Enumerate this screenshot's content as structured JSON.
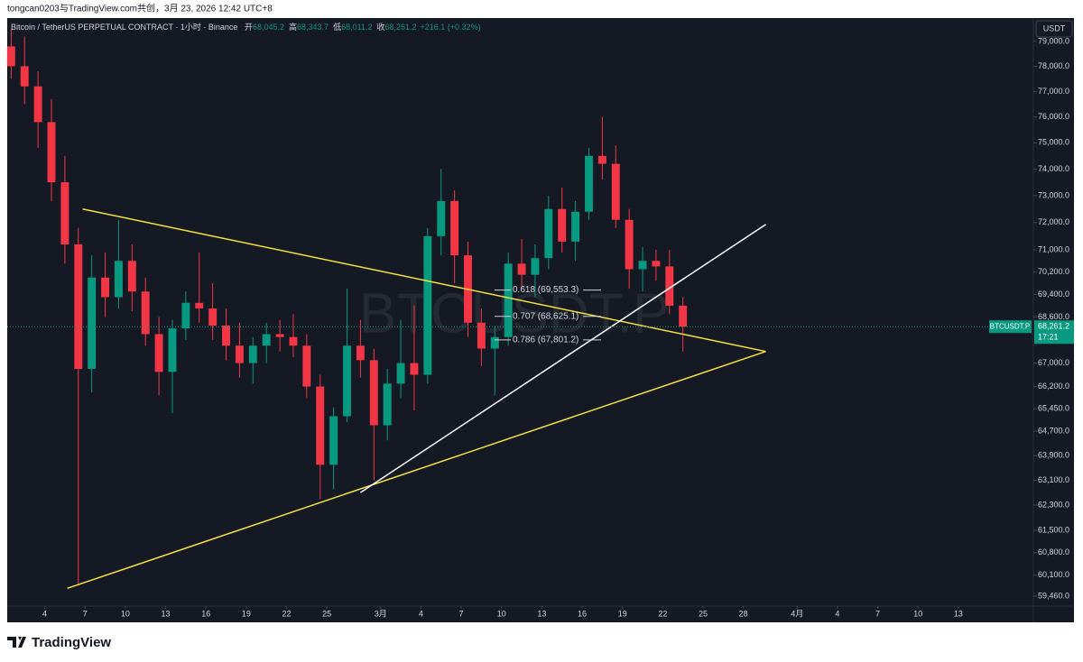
{
  "header": {
    "credit": "tongcan0203与TradingView.com共创，3月 23, 2026 12:42 UTC+8",
    "brand": "TradingView"
  },
  "chart_data": {
    "type": "candlestick",
    "title": "Bitcoin / TetherUS PERPETUAL CONTRACT · 1小时 · Binance",
    "ohlc_legend": [
      {
        "key": "开",
        "value": "68,045.2"
      },
      {
        "key": "高",
        "value": "68,343.7"
      },
      {
        "key": "低",
        "value": "68,011.2"
      },
      {
        "key": "收",
        "value": "68,261.2"
      }
    ],
    "change": "+216.1 (+0.32%)",
    "watermark": "BTCUSDT.P",
    "symbol": "BTCUSDT.P",
    "currency": "USDT",
    "countdown": "17:21",
    "last_price": {
      "value": 68261.2,
      "label": "68,261.2"
    },
    "up_color": "#089981",
    "down_color": "#f23645",
    "log_scale": true,
    "x": [
      "2026-02-01",
      "2026-02-02",
      "2026-02-03",
      "2026-02-04",
      "2026-02-05",
      "2026-02-06",
      "2026-02-07",
      "2026-02-08",
      "2026-02-09",
      "2026-02-10",
      "2026-02-11",
      "2026-02-12",
      "2026-02-13",
      "2026-02-14",
      "2026-02-15",
      "2026-02-16",
      "2026-02-17",
      "2026-02-18",
      "2026-02-19",
      "2026-02-20",
      "2026-02-21",
      "2026-02-22",
      "2026-02-23",
      "2026-02-24",
      "2026-02-25",
      "2026-02-26",
      "2026-02-27",
      "2026-02-28",
      "2026-03-01",
      "2026-03-02",
      "2026-03-03",
      "2026-03-04",
      "2026-03-05",
      "2026-03-06",
      "2026-03-07",
      "2026-03-08",
      "2026-03-09",
      "2026-03-10",
      "2026-03-11",
      "2026-03-12",
      "2026-03-13",
      "2026-03-14",
      "2026-03-15",
      "2026-03-16",
      "2026-03-17",
      "2026-03-18",
      "2026-03-19",
      "2026-03-20",
      "2026-03-21",
      "2026-03-22",
      "2026-03-23"
    ],
    "open": [
      78800,
      78000,
      77200,
      75800,
      73500,
      71200,
      66800,
      70000,
      69300,
      70600,
      69500,
      68000,
      66700,
      68200,
      69100,
      68900,
      68300,
      67600,
      67000,
      67600,
      68000,
      67900,
      67600,
      66200,
      63600,
      65200,
      67600,
      67100,
      64900,
      66300,
      67000,
      66600,
      71500,
      72800,
      70800,
      68400,
      67500,
      67900,
      70500,
      70100,
      70700,
      72500,
      71300,
      72400,
      74500,
      74200,
      72100,
      70300,
      70600,
      70400,
      69000
    ],
    "high": [
      79500,
      79200,
      77800,
      76700,
      74500,
      71800,
      70800,
      70900,
      72100,
      71200,
      70000,
      68600,
      68500,
      69500,
      70900,
      69800,
      68900,
      68400,
      67900,
      68400,
      68500,
      68700,
      68000,
      66600,
      65500,
      69600,
      68500,
      67500,
      66800,
      68500,
      69000,
      71800,
      74000,
      73200,
      71300,
      68900,
      68300,
      70900,
      71400,
      71200,
      73000,
      73300,
      72800,
      74800,
      76000,
      74900,
      72500,
      71100,
      71000,
      71000,
      69300
    ],
    "low": [
      77500,
      76500,
      74800,
      72800,
      70500,
      59800,
      66000,
      68600,
      68900,
      68800,
      67600,
      65900,
      65300,
      67800,
      68400,
      67800,
      67100,
      66500,
      66300,
      67000,
      67400,
      67200,
      65800,
      62500,
      62800,
      65000,
      66500,
      63100,
      64400,
      65800,
      65400,
      66300,
      70800,
      69800,
      67900,
      66900,
      65900,
      67600,
      69600,
      69300,
      70300,
      70900,
      70600,
      72100,
      73600,
      71800,
      69600,
      69500,
      69900,
      68700,
      67400
    ],
    "close": [
      78000,
      77200,
      75800,
      73500,
      71200,
      66800,
      70000,
      69300,
      70600,
      69500,
      68000,
      66700,
      68200,
      69100,
      68900,
      68300,
      67600,
      67000,
      67600,
      68000,
      67900,
      67600,
      66200,
      63600,
      65200,
      67600,
      67100,
      64900,
      66300,
      67000,
      66600,
      71500,
      72800,
      70800,
      68400,
      67500,
      67900,
      70500,
      70100,
      70700,
      72500,
      71300,
      72400,
      74500,
      74200,
      72100,
      70300,
      70600,
      70400,
      69000,
      68261.2
    ],
    "xlim": [
      "2026-02-01T05:00",
      "2026-04-18T14:00"
    ],
    "xticks": [
      {
        "value": "2026-02-04",
        "label": "4"
      },
      {
        "value": "2026-02-07",
        "label": "7"
      },
      {
        "value": "2026-02-10",
        "label": "10"
      },
      {
        "value": "2026-02-13",
        "label": "13"
      },
      {
        "value": "2026-02-16",
        "label": "16"
      },
      {
        "value": "2026-02-19",
        "label": "19"
      },
      {
        "value": "2026-02-22",
        "label": "22"
      },
      {
        "value": "2026-02-25",
        "label": "25"
      },
      {
        "value": "2026-03-01",
        "label": "3月"
      },
      {
        "value": "2026-03-04",
        "label": "4"
      },
      {
        "value": "2026-03-07",
        "label": "7"
      },
      {
        "value": "2026-03-10",
        "label": "10"
      },
      {
        "value": "2026-03-13",
        "label": "13"
      },
      {
        "value": "2026-03-16",
        "label": "16"
      },
      {
        "value": "2026-03-19",
        "label": "19"
      },
      {
        "value": "2026-03-22",
        "label": "22"
      },
      {
        "value": "2026-03-25",
        "label": "25"
      },
      {
        "value": "2026-03-28",
        "label": "28"
      },
      {
        "value": "2026-04-01",
        "label": "4月"
      },
      {
        "value": "2026-04-04",
        "label": "4"
      },
      {
        "value": "2026-04-07",
        "label": "7"
      },
      {
        "value": "2026-04-10",
        "label": "10"
      },
      {
        "value": "2026-04-13",
        "label": "13"
      }
    ],
    "ylim": [
      59160,
      79950
    ],
    "yticks": [
      {
        "value": 79000,
        "label": "79,000.0"
      },
      {
        "value": 78000,
        "label": "78,000.0"
      },
      {
        "value": 77000,
        "label": "77,000.0"
      },
      {
        "value": 76000,
        "label": "76,000.0"
      },
      {
        "value": 75000,
        "label": "75,000.0"
      },
      {
        "value": 74000,
        "label": "74,000.0"
      },
      {
        "value": 73000,
        "label": "73,000.0"
      },
      {
        "value": 72000,
        "label": "72,000.0"
      },
      {
        "value": 71000,
        "label": "71,000.0"
      },
      {
        "value": 70200,
        "label": "70,200.0"
      },
      {
        "value": 69400,
        "label": "69,400.0"
      },
      {
        "value": 68600,
        "label": "68,600.0"
      },
      {
        "value": 67000,
        "label": "67,000.0"
      },
      {
        "value": 66200,
        "label": "66,200.0"
      },
      {
        "value": 65450,
        "label": "65,450.0"
      },
      {
        "value": 64700,
        "label": "64,700.0"
      },
      {
        "value": 63900,
        "label": "63,900.0"
      },
      {
        "value": 63100,
        "label": "63,100.0"
      },
      {
        "value": 62300,
        "label": "62,300.0"
      },
      {
        "value": 61500,
        "label": "61,500.0"
      },
      {
        "value": 60800,
        "label": "60,800.0"
      },
      {
        "value": 60100,
        "label": "60,100.0"
      },
      {
        "value": 59460,
        "label": "59,460.0"
      }
    ],
    "fib_levels": [
      {
        "value": 69553.3,
        "label": "0.618 (69,553.3)"
      },
      {
        "value": 68625.1,
        "label": "0.707 (68,625.1)"
      },
      {
        "value": 67801.2,
        "label": "0.786 (67,801.2)"
      }
    ],
    "fib_color": "#d1d4dc",
    "drawings": [
      {
        "color": "#f5e33b",
        "x": [
          "2026-02-06T19:40",
          "2026-03-29T16:00"
        ],
        "y": [
          72500,
          67400
        ]
      },
      {
        "color": "#f5e33b",
        "x": [
          "2026-02-05T16:20",
          "2026-03-29T16:00"
        ],
        "y": [
          59700,
          67400
        ]
      },
      {
        "color": "#ffffff",
        "x": [
          "2026-02-27T12:00",
          "2026-03-29T16:00"
        ],
        "y": [
          62700,
          71930
        ]
      }
    ]
  }
}
